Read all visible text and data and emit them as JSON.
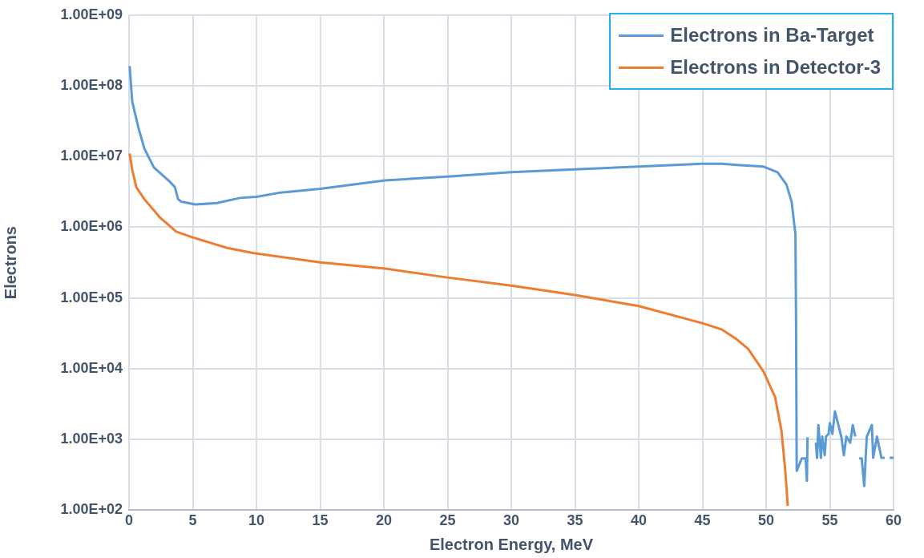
{
  "chart_data": {
    "type": "line",
    "xlabel": "Electron Energy, MeV",
    "ylabel": "Electrons",
    "log": "y",
    "grid": true,
    "legend": "top right",
    "marker": "none",
    "line_style": "solid",
    "xlim": [
      0,
      60
    ],
    "xticks": [
      0,
      5,
      10,
      15,
      20,
      25,
      30,
      35,
      40,
      45,
      50,
      55,
      60
    ],
    "ylim": [
      100,
      1000000000
    ],
    "yticks": [
      {
        "value": 100,
        "label": "1.00E+02"
      },
      {
        "value": 1000,
        "label": "1.00E+03"
      },
      {
        "value": 10000,
        "label": "1.00E+04"
      },
      {
        "value": 100000,
        "label": "1.00E+05"
      },
      {
        "value": 1000000,
        "label": "1.00E+06"
      },
      {
        "value": 10000000,
        "label": "1.00E+07"
      },
      {
        "value": 100000000,
        "label": "1.00E+08"
      },
      {
        "value": 1000000000,
        "label": "1.00E+09"
      }
    ],
    "series": [
      {
        "name": "Electrons in Ba-Target",
        "color": "#5b9bd5",
        "x": [
          0.05,
          0.25,
          0.75,
          1.2,
          1.95,
          3.1,
          3.6,
          3.85,
          4.1,
          5.2,
          6.9,
          8.7,
          10,
          11.9,
          15,
          20.1,
          25,
          30,
          35,
          40,
          45,
          46.5,
          47.7,
          49.8,
          50.9,
          51.6,
          52,
          52.3,
          52.35,
          52.4,
          52.8,
          53.1,
          53.2,
          53.25,
          53.5,
          53.9,
          54,
          54.1,
          54.3,
          54.4,
          54.6,
          54.7,
          54.9,
          55,
          55.2,
          55.4,
          55.6,
          55.9,
          56.1,
          56.3,
          56.6,
          56.8,
          57,
          57.15,
          57.3,
          57.5,
          57.7,
          57.9,
          58.3,
          58.4,
          58.7,
          59.05,
          59.3,
          59.5,
          59.7,
          60
        ],
        "values": [
          190000000,
          60000000,
          25000000,
          13000000,
          7000000,
          4600000,
          3700000,
          2500000,
          2300000,
          2100000,
          2200000,
          2600000,
          2700000,
          3100000,
          3500000,
          4600000,
          5200000,
          6000000,
          6600000,
          7200000,
          7900000,
          7900000,
          7600000,
          7200000,
          6000000,
          4000000,
          2300000,
          800000,
          44000,
          360,
          540,
          540,
          260,
          1070,
          null,
          900,
          550,
          1600,
          550,
          1100,
          600,
          1100,
          1200,
          1700,
          1200,
          2500,
          1800,
          1100,
          600,
          1100,
          900,
          1600,
          1100,
          null,
          540,
          540,
          220,
          1100,
          1600,
          550,
          1100,
          550,
          550,
          null,
          550,
          550
        ]
      },
      {
        "name": "Electrons in Detector-3",
        "color": "#ed7d31",
        "x": [
          0.05,
          0.25,
          0.57,
          1.2,
          2.45,
          3.7,
          5,
          7.7,
          9.8,
          15,
          20.1,
          25,
          30,
          35,
          40,
          45,
          46.5,
          47.7,
          48.6,
          49.8,
          50.7,
          51.2,
          51.5,
          51.7
        ],
        "values": [
          11000000,
          6500000,
          3700000,
          2500000,
          1360000,
          870000,
          720000,
          510000,
          430000,
          320000,
          260000,
          195000,
          150000,
          110000,
          77000,
          44000,
          36000,
          26000,
          19000,
          9100,
          4000,
          1350,
          370,
          115
        ]
      }
    ]
  }
}
